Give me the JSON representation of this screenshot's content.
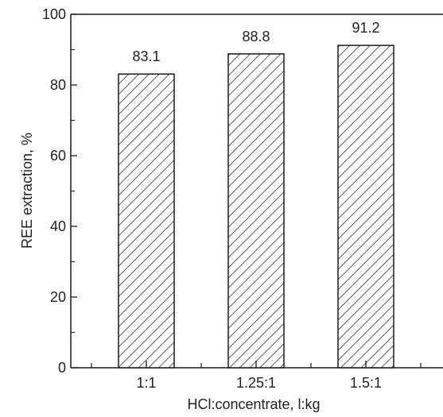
{
  "chart_data": {
    "type": "bar",
    "categories": [
      "1:1",
      "1.25:1",
      "1.5:1"
    ],
    "values": [
      83.1,
      88.8,
      91.2
    ],
    "data_labels": [
      "83.1",
      "88.8",
      "91.2"
    ],
    "title": "",
    "xlabel": "HCl:concentrate, l:kg",
    "ylabel": "REE extraction, %",
    "ylim": [
      0,
      100
    ],
    "y_ticks": [
      0,
      20,
      40,
      60,
      80,
      100
    ],
    "grid": false,
    "legend": "none",
    "bar_fill": "hatched",
    "colors": {
      "axis": "#1a1a1a",
      "bar_edge": "#1a1a1a",
      "hatch": "#333333",
      "text": "#222222"
    }
  }
}
